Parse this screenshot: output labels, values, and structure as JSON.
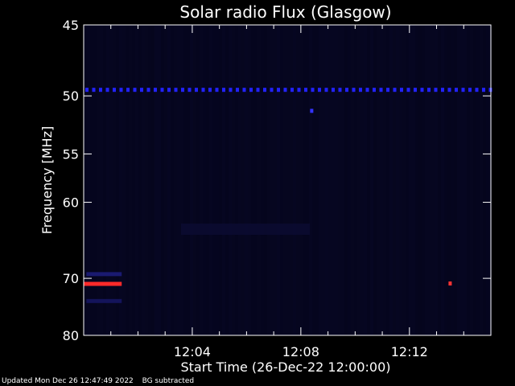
{
  "chart_data": {
    "type": "heatmap",
    "title": "Solar radio Flux (Glasgow)",
    "xlabel": "Start Time (26-Dec-22 12:00:00)",
    "ylabel": "Frequency [MHz]",
    "x_unit": "minutes after 12:00:00",
    "xlim": [
      0,
      15
    ],
    "ylim": [
      80,
      45
    ],
    "x_ticks": [
      {
        "value": 4,
        "label": "12:04"
      },
      {
        "value": 8,
        "label": "12:08"
      },
      {
        "value": 12,
        "label": "12:12"
      }
    ],
    "y_ticks": [
      {
        "value": 45,
        "label": "45"
      },
      {
        "value": 50,
        "label": "50"
      },
      {
        "value": 55,
        "label": "55"
      },
      {
        "value": 60,
        "label": "60"
      },
      {
        "value": 70,
        "label": "70"
      },
      {
        "value": 80,
        "label": "80"
      }
    ],
    "background_color": "#05051a",
    "features": [
      {
        "type": "dashed_band",
        "freq_mhz": 49.5,
        "t_start": 0,
        "t_end": 15,
        "color": "#2222ff"
      },
      {
        "type": "spot",
        "freq_mhz": 51.2,
        "t": 8.4,
        "color": "#3333ff"
      },
      {
        "type": "band",
        "freq_mhz": 70.8,
        "t_start": 0,
        "t_end": 1.4,
        "color": "#ff2a2a"
      },
      {
        "type": "band",
        "freq_mhz": 69.3,
        "t_start": 0.1,
        "t_end": 1.4,
        "color": "#1a1a70"
      },
      {
        "type": "band",
        "freq_mhz": 73.6,
        "t_start": 0.1,
        "t_end": 1.4,
        "color": "#14145a"
      },
      {
        "type": "spot",
        "freq_mhz": 70.8,
        "t": 13.5,
        "color": "#ff3333"
      }
    ]
  },
  "footer": {
    "updated": "Updated Mon Dec 26 12:47:49 2022",
    "bg_note": "BG subtracted"
  }
}
